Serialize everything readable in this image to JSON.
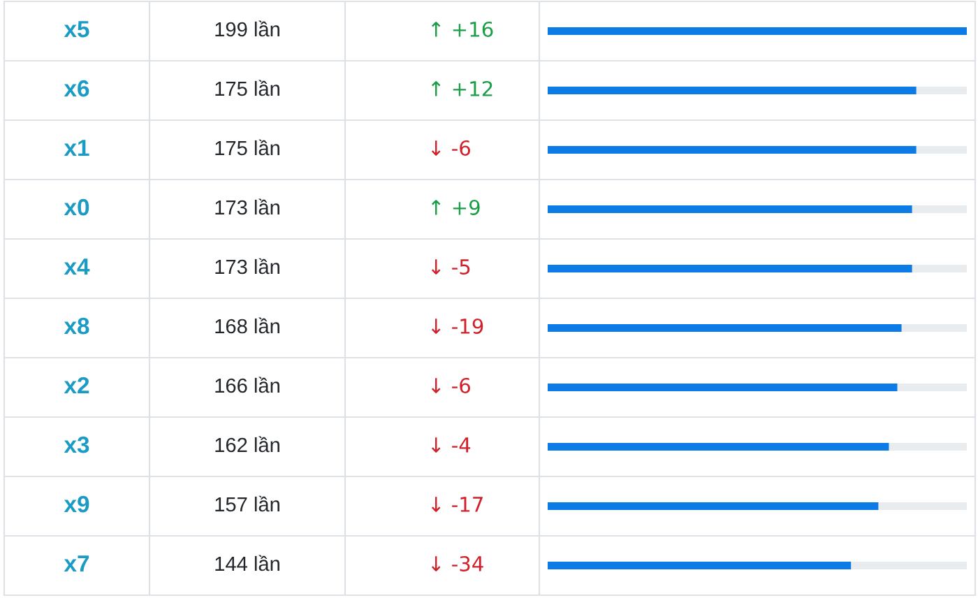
{
  "chart_data": {
    "type": "bar",
    "orientation": "horizontal",
    "categories": [
      "x5",
      "x6",
      "x1",
      "x0",
      "x4",
      "x8",
      "x2",
      "x3",
      "x9",
      "x7"
    ],
    "values": [
      199,
      175,
      175,
      173,
      173,
      168,
      166,
      162,
      157,
      144
    ],
    "value_labels": [
      "199 lần",
      "175 lần",
      "175 lần",
      "173 lần",
      "173 lần",
      "168 lần",
      "166 lần",
      "162 lần",
      "157 lần",
      "144 lần"
    ],
    "annotations": [
      "↑ +16",
      "↑ +12",
      "↓ -6",
      "↑ +9",
      "↓ -5",
      "↓ -19",
      "↓ -6",
      "↓ -4",
      "↓ -17",
      "↓ -34"
    ],
    "color": "#0d7be6",
    "xlim": [
      0,
      199
    ],
    "grid": false,
    "legend": false
  }
}
